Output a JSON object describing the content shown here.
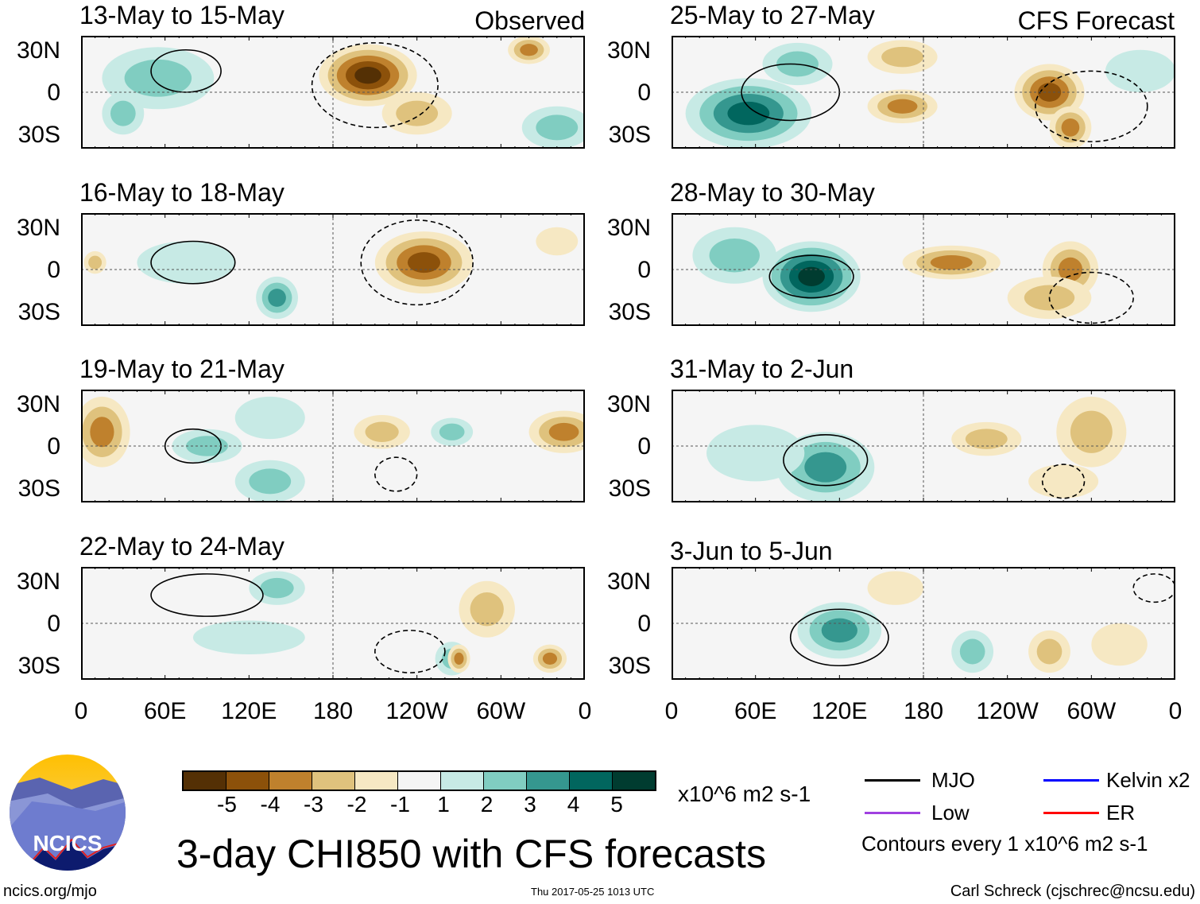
{
  "title": "3-day CHI850 with CFS forecasts",
  "logo_text": "NCICS",
  "footer": {
    "left": "ncics.org/mjo",
    "center": "Thu 2017-05-25 1013 UTC",
    "right": "Carl Schreck (cjschrec@ncsu.edu)"
  },
  "column_tags": {
    "observed": "Observed",
    "forecast": "CFS Forecast"
  },
  "lat_labels": [
    "30N",
    "0",
    "30S"
  ],
  "lon_labels": [
    "0",
    "60E",
    "120E",
    "180",
    "120W",
    "60W",
    "0"
  ],
  "colorbar": {
    "unit": "x10^6 m2 s-1",
    "ticks": [
      "-5",
      "-4",
      "-3",
      "-2",
      "-1",
      "1",
      "2",
      "3",
      "4",
      "5"
    ],
    "colors": [
      "#543005",
      "#8c510a",
      "#bf812d",
      "#dfc27d",
      "#f6e8c3",
      "#f5f5f5",
      "#c7eae5",
      "#80cdc1",
      "#35978f",
      "#01665e",
      "#003c30"
    ]
  },
  "legend": {
    "items": [
      {
        "label": "MJO",
        "color": "#000000"
      },
      {
        "label": "Kelvin x2",
        "color": "#0000ff"
      },
      {
        "label": "Low",
        "color": "#a040e0"
      },
      {
        "label": "ER",
        "color": "#ff0000"
      }
    ],
    "note": "Contours every 1 x10^6 m2 s-1"
  },
  "chart_data": {
    "type": "heatmap",
    "variable": "CHI850 anomaly",
    "lon_range": [
      0,
      360
    ],
    "lat_range": [
      -40,
      40
    ],
    "panels": [
      {
        "title": "13-May to 15-May",
        "kind": "observed",
        "features": [
          {
            "lon": 205,
            "lat": 12,
            "rlon": 35,
            "rlat": 22,
            "value": -5
          },
          {
            "lon": 240,
            "lat": -15,
            "rlon": 25,
            "rlat": 15,
            "value": -2
          },
          {
            "lon": 320,
            "lat": 30,
            "rlon": 15,
            "rlat": 10,
            "value": -3
          },
          {
            "lon": 55,
            "lat": 10,
            "rlon": 40,
            "rlat": 22,
            "value": 2
          },
          {
            "lon": 30,
            "lat": -15,
            "rlon": 15,
            "rlat": 15,
            "value": 2
          },
          {
            "lon": 340,
            "lat": -25,
            "rlon": 25,
            "rlat": 15,
            "value": 2
          }
        ],
        "contours": [
          {
            "lon": 75,
            "lat": 15,
            "rlon": 25,
            "rlat": 15,
            "sign": 1
          },
          {
            "lon": 210,
            "lat": 5,
            "rlon": 45,
            "rlat": 30,
            "sign": -1
          }
        ]
      },
      {
        "title": "16-May to 18-May",
        "kind": "observed",
        "features": [
          {
            "lon": 245,
            "lat": 5,
            "rlon": 35,
            "rlat": 22,
            "value": -4
          },
          {
            "lon": 340,
            "lat": 20,
            "rlon": 15,
            "rlat": 10,
            "value": -1
          },
          {
            "lon": 140,
            "lat": -20,
            "rlon": 15,
            "rlat": 15,
            "value": 3
          },
          {
            "lon": 75,
            "lat": 5,
            "rlon": 35,
            "rlat": 15,
            "value": 1
          },
          {
            "lon": 10,
            "lat": 5,
            "rlon": 8,
            "rlat": 8,
            "value": -2
          }
        ],
        "contours": [
          {
            "lon": 80,
            "lat": 5,
            "rlon": 30,
            "rlat": 15,
            "sign": 1
          },
          {
            "lon": 240,
            "lat": 5,
            "rlon": 40,
            "rlat": 30,
            "sign": -1
          }
        ]
      },
      {
        "title": "19-May to 21-May",
        "kind": "observed",
        "features": [
          {
            "lon": 15,
            "lat": 10,
            "rlon": 20,
            "rlat": 25,
            "value": -3
          },
          {
            "lon": 345,
            "lat": 10,
            "rlon": 25,
            "rlat": 15,
            "value": -3
          },
          {
            "lon": 215,
            "lat": 10,
            "rlon": 20,
            "rlat": 12,
            "value": -2
          },
          {
            "lon": 90,
            "lat": 0,
            "rlon": 25,
            "rlat": 12,
            "value": 2
          },
          {
            "lon": 135,
            "lat": -25,
            "rlon": 25,
            "rlat": 15,
            "value": 2
          },
          {
            "lon": 135,
            "lat": 20,
            "rlon": 25,
            "rlat": 15,
            "value": 1
          },
          {
            "lon": 265,
            "lat": 10,
            "rlon": 15,
            "rlat": 10,
            "value": 2
          }
        ],
        "contours": [
          {
            "lon": 80,
            "lat": 0,
            "rlon": 20,
            "rlat": 12,
            "sign": 1
          },
          {
            "lon": 225,
            "lat": -20,
            "rlon": 15,
            "rlat": 12,
            "sign": -1
          }
        ]
      },
      {
        "title": "22-May to 24-May",
        "kind": "observed",
        "features": [
          {
            "lon": 140,
            "lat": 25,
            "rlon": 20,
            "rlat": 12,
            "value": 2
          },
          {
            "lon": 120,
            "lat": -10,
            "rlon": 40,
            "rlat": 12,
            "value": 1
          },
          {
            "lon": 290,
            "lat": 10,
            "rlon": 20,
            "rlat": 20,
            "value": -2
          },
          {
            "lon": 265,
            "lat": -25,
            "rlon": 12,
            "rlat": 12,
            "value": 2
          },
          {
            "lon": 335,
            "lat": -25,
            "rlon": 12,
            "rlat": 10,
            "value": -3
          },
          {
            "lon": 270,
            "lat": -25,
            "rlon": 8,
            "rlat": 10,
            "value": -3
          }
        ],
        "contours": [
          {
            "lon": 90,
            "lat": 20,
            "rlon": 40,
            "rlat": 15,
            "sign": 1
          },
          {
            "lon": 235,
            "lat": -20,
            "rlon": 25,
            "rlat": 15,
            "sign": -1
          }
        ]
      },
      {
        "title": "25-May to 27-May",
        "kind": "forecast",
        "features": [
          {
            "lon": 55,
            "lat": -15,
            "rlon": 45,
            "rlat": 25,
            "value": 4
          },
          {
            "lon": 90,
            "lat": 20,
            "rlon": 25,
            "rlat": 15,
            "value": 2
          },
          {
            "lon": 335,
            "lat": 15,
            "rlon": 25,
            "rlat": 15,
            "value": 1
          },
          {
            "lon": 165,
            "lat": -10,
            "rlon": 25,
            "rlat": 12,
            "value": -3
          },
          {
            "lon": 270,
            "lat": 0,
            "rlon": 25,
            "rlat": 20,
            "value": -4
          },
          {
            "lon": 285,
            "lat": -25,
            "rlon": 15,
            "rlat": 15,
            "value": -3
          },
          {
            "lon": 165,
            "lat": 25,
            "rlon": 25,
            "rlat": 12,
            "value": -2
          }
        ],
        "contours": [
          {
            "lon": 85,
            "lat": 0,
            "rlon": 35,
            "rlat": 20,
            "sign": 1
          },
          {
            "lon": 300,
            "lat": -10,
            "rlon": 40,
            "rlat": 25,
            "sign": -1
          }
        ]
      },
      {
        "title": "28-May to 30-May",
        "kind": "forecast",
        "features": [
          {
            "lon": 100,
            "lat": -5,
            "rlon": 35,
            "rlat": 25,
            "value": 5
          },
          {
            "lon": 45,
            "lat": 10,
            "rlon": 30,
            "rlat": 20,
            "value": 2
          },
          {
            "lon": 200,
            "lat": 5,
            "rlon": 35,
            "rlat": 12,
            "value": -3
          },
          {
            "lon": 285,
            "lat": 0,
            "rlon": 20,
            "rlat": 20,
            "value": -3
          },
          {
            "lon": 270,
            "lat": -20,
            "rlon": 30,
            "rlat": 15,
            "value": -2
          }
        ],
        "contours": [
          {
            "lon": 100,
            "lat": -5,
            "rlon": 30,
            "rlat": 15,
            "sign": 1
          },
          {
            "lon": 300,
            "lat": -20,
            "rlon": 30,
            "rlat": 18,
            "sign": -1
          }
        ]
      },
      {
        "title": "31-May to 2-Jun",
        "kind": "forecast",
        "features": [
          {
            "lon": 110,
            "lat": -15,
            "rlon": 35,
            "rlat": 25,
            "value": 3
          },
          {
            "lon": 60,
            "lat": -5,
            "rlon": 35,
            "rlat": 20,
            "value": 1
          },
          {
            "lon": 300,
            "lat": 10,
            "rlon": 25,
            "rlat": 25,
            "value": -2
          },
          {
            "lon": 225,
            "lat": 5,
            "rlon": 25,
            "rlat": 12,
            "value": -2
          },
          {
            "lon": 280,
            "lat": -25,
            "rlon": 25,
            "rlat": 12,
            "value": -1
          }
        ],
        "contours": [
          {
            "lon": 110,
            "lat": -10,
            "rlon": 30,
            "rlat": 18,
            "sign": 1
          },
          {
            "lon": 280,
            "lat": -25,
            "rlon": 15,
            "rlat": 12,
            "sign": -1
          }
        ]
      },
      {
        "title": "3-Jun to 5-Jun",
        "kind": "forecast",
        "features": [
          {
            "lon": 120,
            "lat": -5,
            "rlon": 30,
            "rlat": 20,
            "value": 3
          },
          {
            "lon": 215,
            "lat": -20,
            "rlon": 15,
            "rlat": 15,
            "value": 2
          },
          {
            "lon": 270,
            "lat": -20,
            "rlon": 15,
            "rlat": 15,
            "value": -2
          },
          {
            "lon": 320,
            "lat": -15,
            "rlon": 20,
            "rlat": 15,
            "value": -1
          },
          {
            "lon": 160,
            "lat": 25,
            "rlon": 20,
            "rlat": 12,
            "value": -1
          }
        ],
        "contours": [
          {
            "lon": 120,
            "lat": -10,
            "rlon": 35,
            "rlat": 20,
            "sign": 1
          },
          {
            "lon": 345,
            "lat": 25,
            "rlon": 15,
            "rlat": 10,
            "sign": -1
          }
        ]
      }
    ]
  }
}
